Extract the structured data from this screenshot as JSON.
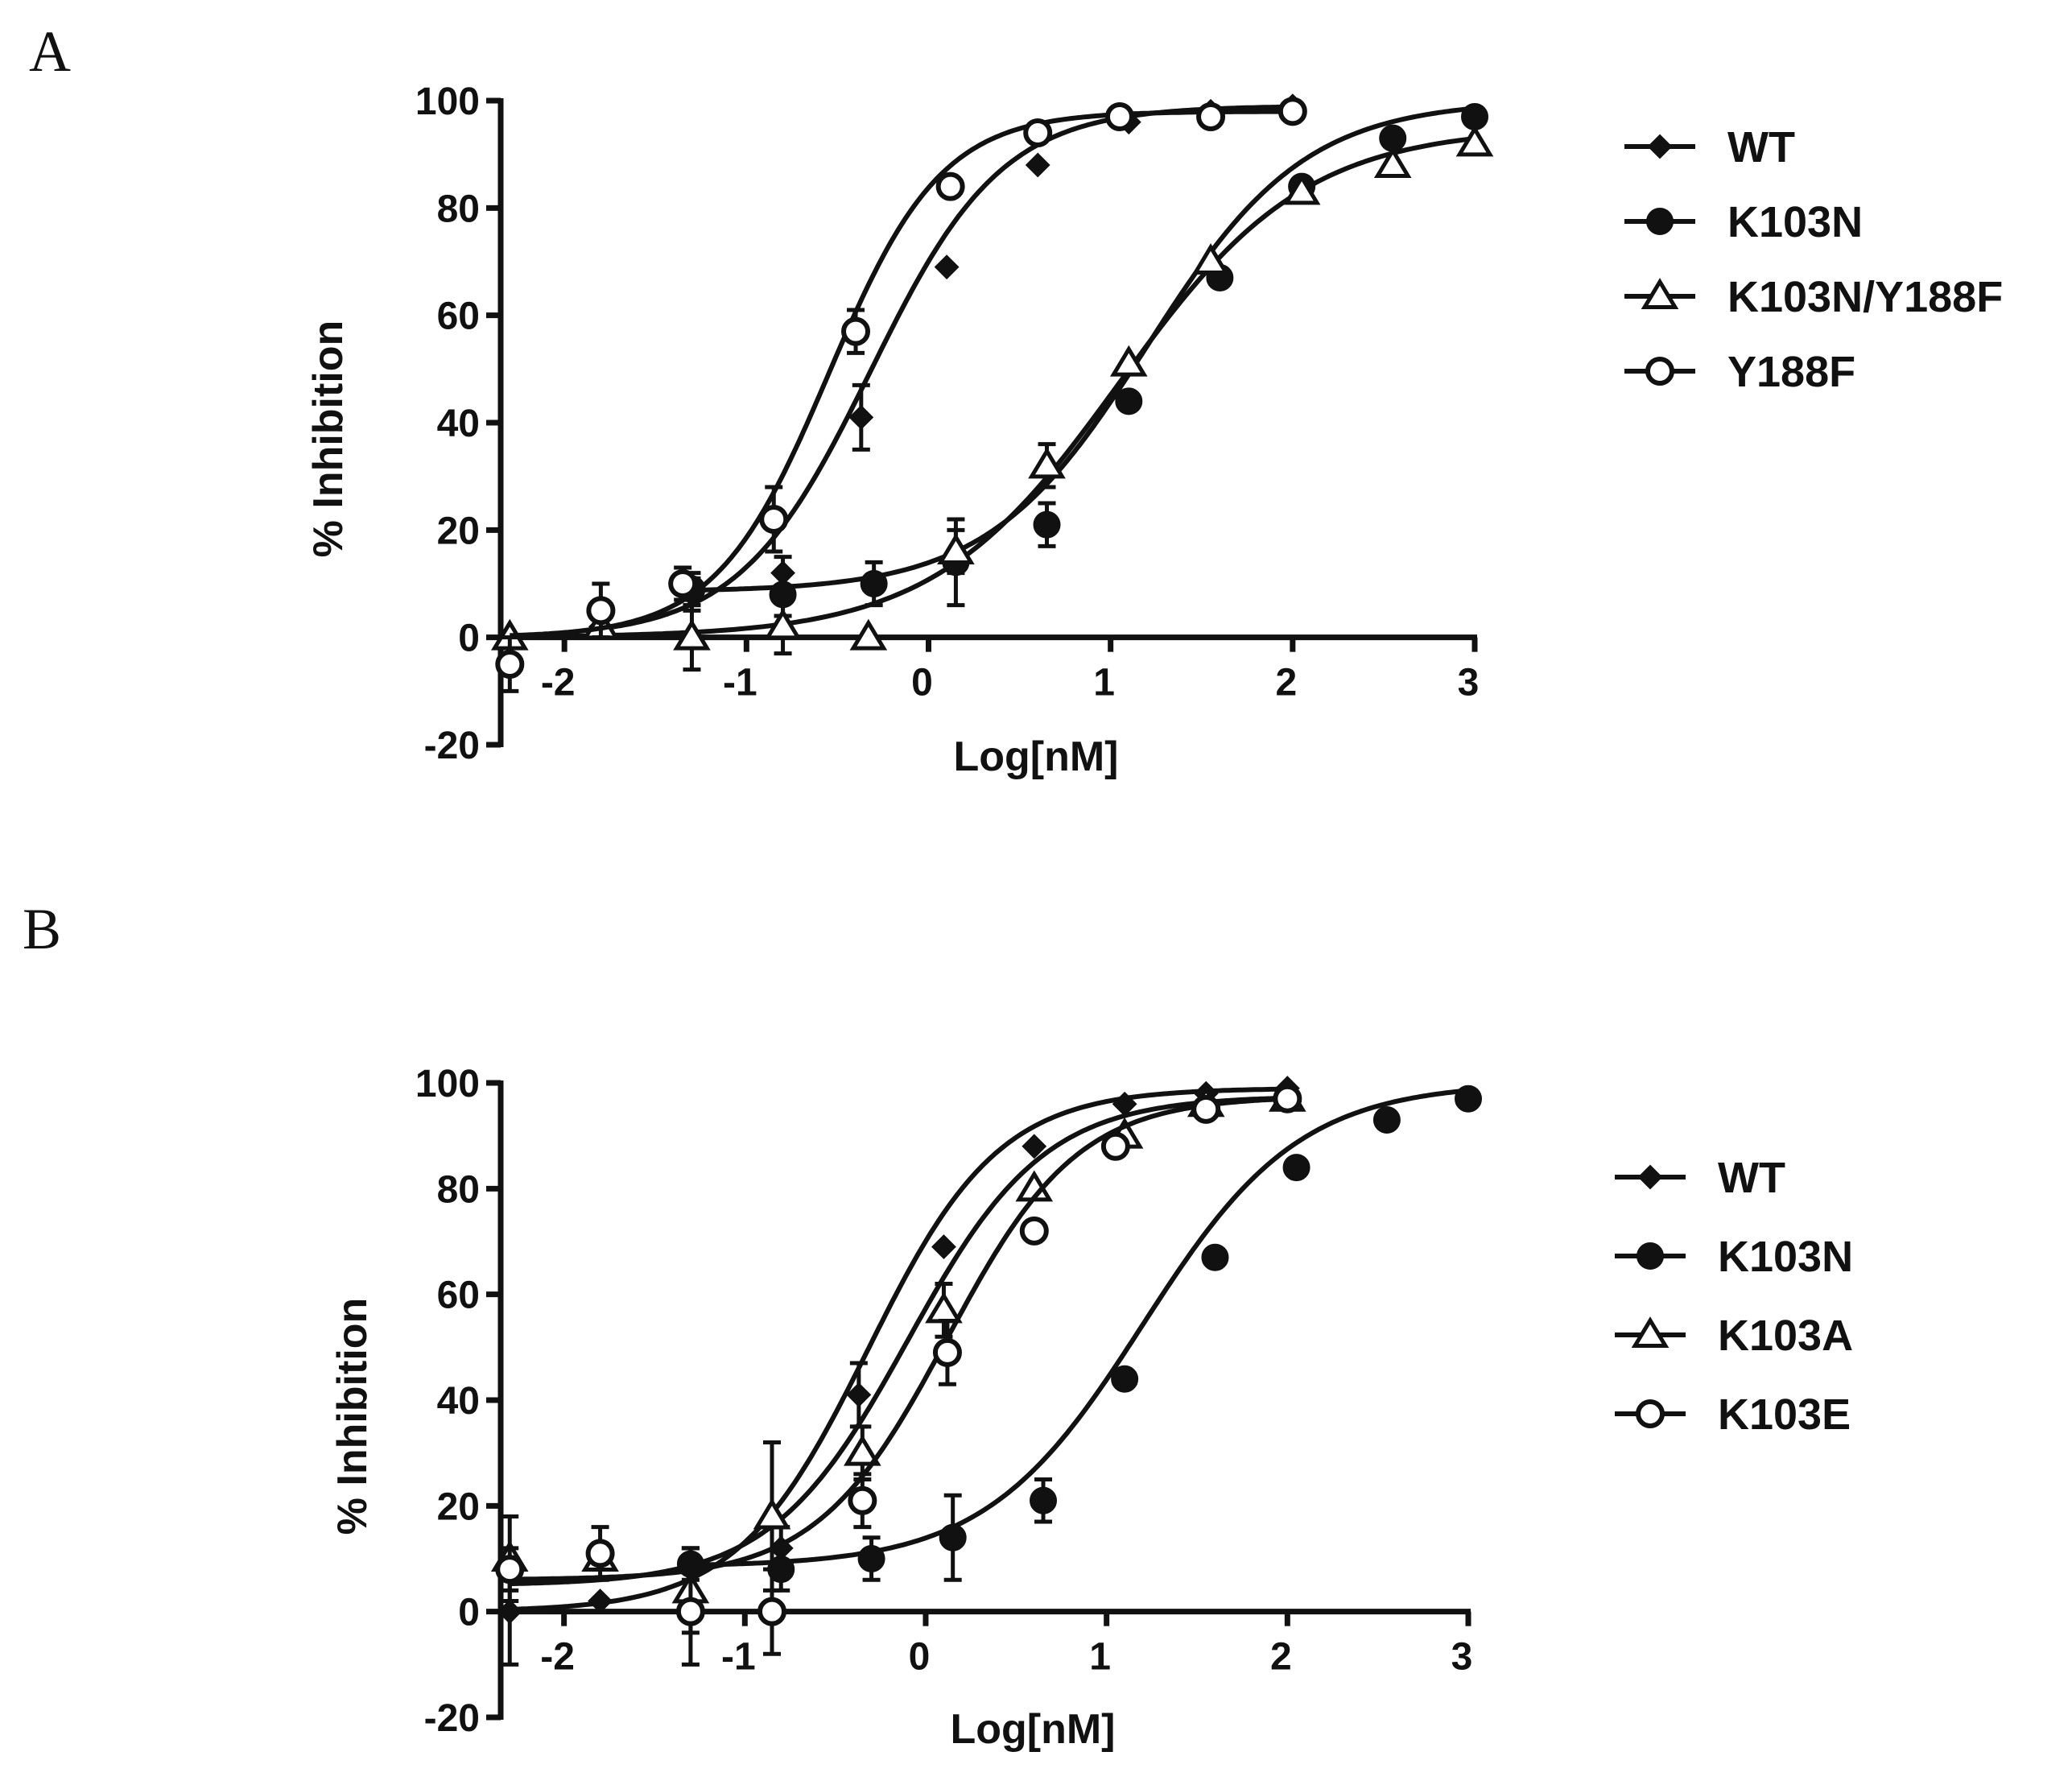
{
  "chart_data": [
    {
      "panel": "A",
      "type": "scatter",
      "xlabel": "Log[nM]",
      "ylabel": "% Inhibition",
      "xlim": [
        -2.35,
        3
      ],
      "ylim": [
        -20,
        100
      ],
      "xticks": [
        -2,
        -1,
        0,
        1,
        2,
        3
      ],
      "xtick_labels": [
        "-2",
        "-1",
        "0",
        "1",
        "2",
        "3"
      ],
      "yticks": [
        -20,
        0,
        20,
        40,
        60,
        80,
        100
      ],
      "ytick_labels": [
        "-20",
        "0",
        "20",
        "40",
        "60",
        "80",
        "100"
      ],
      "legend_position": "right",
      "series": [
        {
          "name": "WT",
          "marker": "diamond",
          "x": [
            -1.8,
            -1.3,
            -0.8,
            -0.37,
            0.1,
            0.6,
            1.1,
            1.55,
            2.0
          ],
          "y": [
            2,
            8,
            12,
            41,
            69,
            88,
            96,
            98,
            99
          ],
          "err": [
            0,
            3,
            3,
            6,
            0,
            0,
            0,
            0,
            0
          ],
          "fit": {
            "bottom": 0,
            "top": 99,
            "logec50": -0.32,
            "hill": 1.2
          }
        },
        {
          "name": "K103N",
          "marker": "circle-filled",
          "x": [
            -1.3,
            -0.8,
            -0.3,
            0.15,
            0.65,
            1.1,
            1.6,
            2.05,
            2.55,
            3.0
          ],
          "y": [
            9,
            8,
            10,
            14,
            21,
            44,
            67,
            84,
            93,
            97
          ],
          "err": [
            3,
            4,
            4,
            8,
            4,
            0,
            0,
            0,
            0,
            0
          ],
          "fit": {
            "bottom": 8.5,
            "top": 100,
            "logec50": 1.2,
            "hill": 1.0
          }
        },
        {
          "name": "K103N/Y188F",
          "marker": "triangle-open",
          "x": [
            -2.3,
            -1.8,
            -1.3,
            -0.8,
            -0.33,
            0.15,
            0.65,
            1.1,
            1.55,
            2.05,
            2.55,
            3.0
          ],
          "y": [
            0,
            2,
            0,
            2,
            0,
            16,
            32,
            51,
            70,
            83,
            88,
            92
          ],
          "err": [
            0,
            0,
            6,
            5,
            0,
            4,
            4,
            0,
            0,
            0,
            0,
            0
          ],
          "fit": {
            "bottom": 0,
            "top": 95,
            "logec50": 1.05,
            "hill": 0.85
          }
        },
        {
          "name": "Y188F",
          "marker": "circle-open",
          "x": [
            -2.3,
            -1.8,
            -1.35,
            -0.85,
            -0.4,
            0.12,
            0.6,
            1.05,
            1.55,
            2.0
          ],
          "y": [
            -5,
            5,
            10,
            22,
            57,
            84,
            94,
            97,
            97,
            98
          ],
          "err": [
            5,
            5,
            3,
            6,
            4,
            0,
            0,
            0,
            0,
            0
          ],
          "fit": {
            "bottom": 0,
            "top": 98,
            "logec50": -0.55,
            "hill": 1.4
          }
        }
      ]
    },
    {
      "panel": "B",
      "type": "scatter",
      "xlabel": "Log[nM]",
      "ylabel": "% Inhibition",
      "xlim": [
        -2.35,
        3
      ],
      "ylim": [
        -20,
        100
      ],
      "xticks": [
        -2,
        -1,
        0,
        1,
        2,
        3
      ],
      "xtick_labels": [
        "-2",
        "-1",
        "0",
        "1",
        "2",
        "3"
      ],
      "yticks": [
        -20,
        0,
        20,
        40,
        60,
        80,
        100
      ],
      "ytick_labels": [
        "-20",
        "0",
        "20",
        "40",
        "60",
        "80",
        "100"
      ],
      "legend_position": "right",
      "series": [
        {
          "name": "WT",
          "marker": "diamond",
          "x": [
            -2.3,
            -1.8,
            -1.3,
            -0.8,
            -0.37,
            0.1,
            0.6,
            1.1,
            1.55,
            2.0
          ],
          "y": [
            0,
            2,
            8,
            12,
            41,
            69,
            88,
            96,
            98,
            99
          ],
          "err": [
            10,
            0,
            4,
            4,
            6,
            0,
            0,
            0,
            0,
            0
          ],
          "fit": {
            "bottom": 0,
            "top": 99,
            "logec50": -0.32,
            "hill": 1.2
          }
        },
        {
          "name": "K103N",
          "marker": "circle-filled",
          "x": [
            -1.3,
            -0.8,
            -0.3,
            0.15,
            0.65,
            1.1,
            1.6,
            2.05,
            2.55,
            3.0
          ],
          "y": [
            9,
            8,
            10,
            14,
            21,
            44,
            67,
            84,
            93,
            97
          ],
          "err": [
            3,
            4,
            4,
            8,
            4,
            0,
            0,
            0,
            0,
            0
          ],
          "fit": {
            "bottom": 8.5,
            "top": 100,
            "logec50": 1.2,
            "hill": 1.0
          }
        },
        {
          "name": "K103A",
          "marker": "triangle-open",
          "x": [
            -2.3,
            -1.8,
            -1.3,
            -0.85,
            -0.35,
            0.1,
            0.6,
            1.1,
            1.55,
            2.0
          ],
          "y": [
            10,
            10,
            4,
            18,
            30,
            57,
            80,
            90,
            96,
            97
          ],
          "err": [
            8,
            0,
            8,
            14,
            5,
            5,
            0,
            0,
            0,
            0
          ],
          "fit": {
            "bottom": 5,
            "top": 97.5,
            "logec50": -0.1,
            "hill": 1.15
          }
        },
        {
          "name": "K103E",
          "marker": "circle-open",
          "x": [
            -2.3,
            -1.8,
            -1.3,
            -0.85,
            -0.35,
            0.12,
            0.6,
            1.05,
            1.55,
            2.0
          ],
          "y": [
            8,
            11,
            0,
            0,
            21,
            49,
            72,
            88,
            95,
            97
          ],
          "err": [
            4,
            5,
            10,
            8,
            5,
            6,
            0,
            0,
            0,
            0
          ],
          "fit": {
            "bottom": 6,
            "top": 97.5,
            "logec50": 0.12,
            "hill": 1.2
          }
        }
      ]
    }
  ]
}
